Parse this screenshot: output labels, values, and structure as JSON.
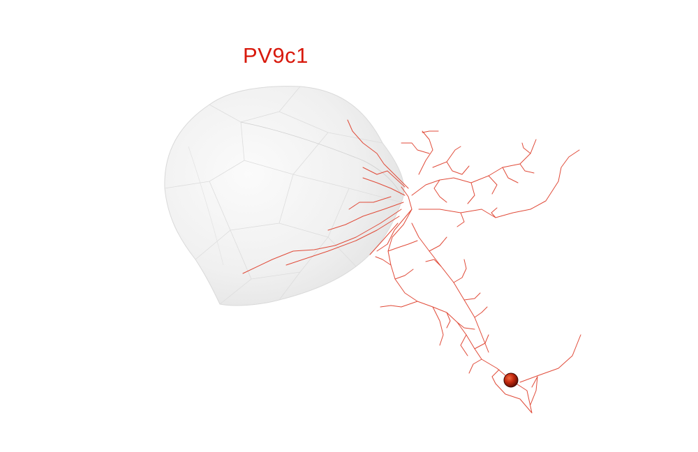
{
  "title": "PV9c1",
  "colors": {
    "background": "#ffffff",
    "title": "#d8190c",
    "neuron": "#e04a38",
    "soma": "#c42a10",
    "mesh_fill": "#f1f1f1",
    "mesh_edge": "#d6d6d6"
  },
  "icons": {
    "region_mesh": "translucent-brain-region-mesh",
    "soma": "red-sphere-soma",
    "neuron": "branching-axon-tree"
  }
}
